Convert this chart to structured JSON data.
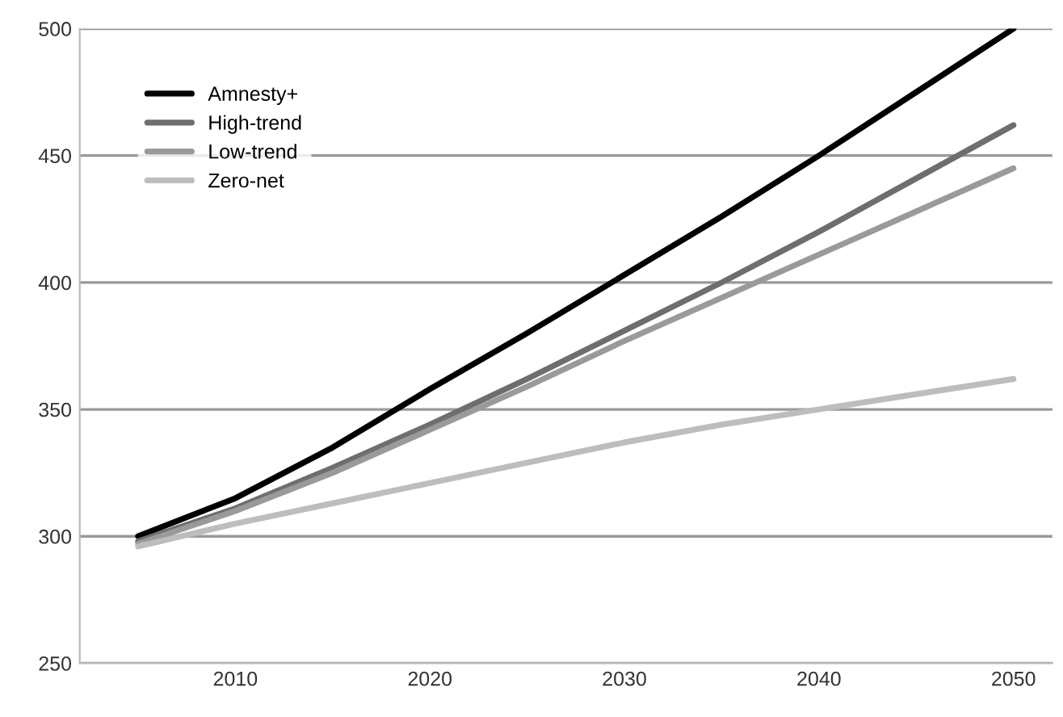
{
  "chart_data": {
    "type": "line",
    "x": [
      2005,
      2010,
      2015,
      2020,
      2025,
      2030,
      2035,
      2040,
      2045,
      2050
    ],
    "series": [
      {
        "name": "Amnesty+",
        "color": "#000000",
        "values": [
          300,
          315,
          335,
          358,
          380,
          403,
          426,
          450,
          475,
          500
        ]
      },
      {
        "name": "High-trend",
        "color": "#6e6e6e",
        "values": [
          298,
          311,
          327,
          344,
          362,
          381,
          400,
          420,
          441,
          462
        ]
      },
      {
        "name": "Low-trend",
        "color": "#9a9a9a",
        "values": [
          297,
          310,
          325,
          342,
          359,
          377,
          394,
          411,
          428,
          445
        ]
      },
      {
        "name": "Zero-net",
        "color": "#bdbdbd",
        "values": [
          296,
          305,
          313,
          321,
          329,
          337,
          344,
          350,
          356,
          362
        ]
      }
    ],
    "xlim": [
      2002,
      2052
    ],
    "xticks": [
      2010,
      2020,
      2030,
      2040,
      2050
    ],
    "ylim": [
      250,
      500
    ],
    "yticks": [
      250,
      300,
      350,
      400,
      450,
      500
    ],
    "grid": "y",
    "legend": "top left",
    "marker": "none",
    "line_style": "solid"
  }
}
